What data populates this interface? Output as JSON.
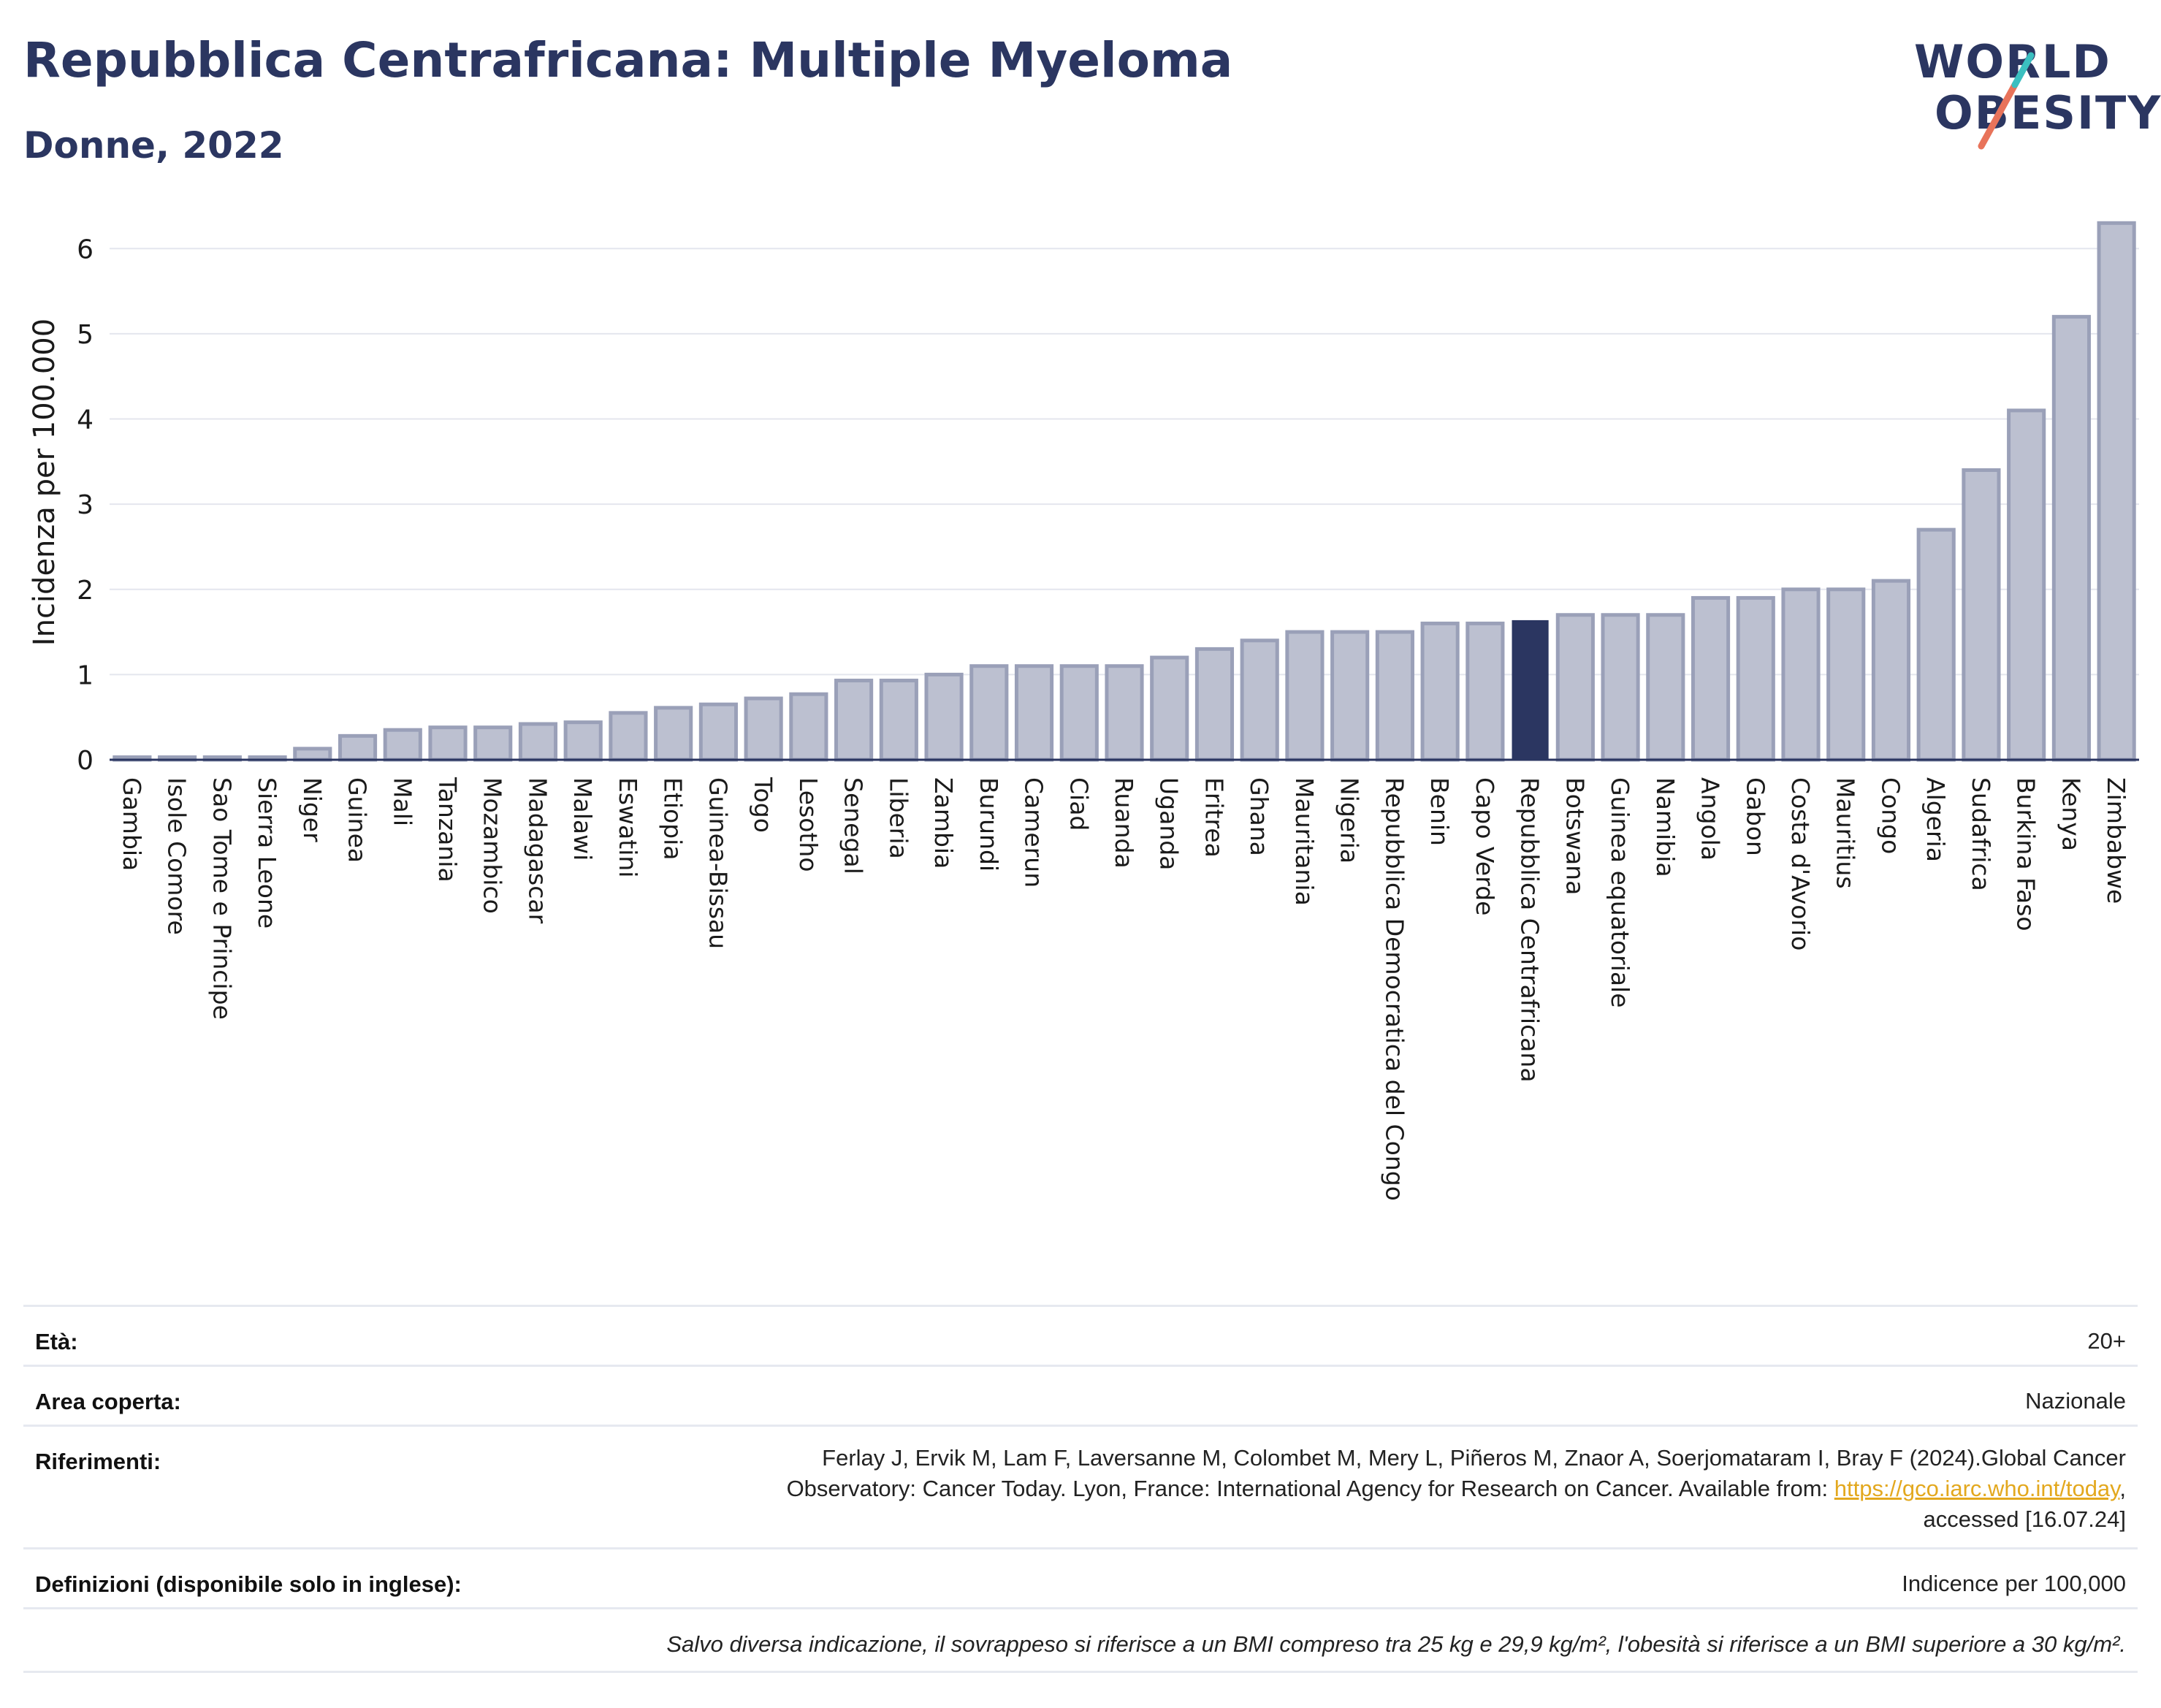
{
  "header": {
    "title": "Repubblica Centrafricana: Multiple Myeloma",
    "subtitle": "Donne, 2022"
  },
  "logo": {
    "line1": "WORLD",
    "line2": "OBESITY",
    "accent_teal": "#3bbfc0",
    "accent_coral": "#e8735a"
  },
  "colors": {
    "bar": "#bcc0d0",
    "bar_border": "#9aa0b8",
    "highlight": "#2b3661",
    "grid": "#e4e6ee"
  },
  "chart_data": {
    "type": "bar",
    "ylabel": "Incidenza per 100.000",
    "xlabel": "",
    "ylim": [
      0,
      6.5
    ],
    "yticks": [
      0,
      1,
      2,
      3,
      4,
      5,
      6
    ],
    "highlight": "Repubblica Centrafricana",
    "categories": [
      "Gambia",
      "Isole Comore",
      "Sao Tome e Principe",
      "Sierra Leone",
      "Niger",
      "Guinea",
      "Mali",
      "Tanzania",
      "Mozambico",
      "Madagascar",
      "Malawi",
      "Eswatini",
      "Etiopia",
      "Guinea-Bissau",
      "Togo",
      "Lesotho",
      "Senegal",
      "Liberia",
      "Zambia",
      "Burundi",
      "Camerun",
      "Ciad",
      "Ruanda",
      "Uganda",
      "Eritrea",
      "Ghana",
      "Mauritania",
      "Nigeria",
      "Repubblica Democratica del Congo",
      "Benin",
      "Capo Verde",
      "Repubblica Centrafricana",
      "Botswana",
      "Guinea equatoriale",
      "Namibia",
      "Angola",
      "Gabon",
      "Costa d'Avorio",
      "Mauritius",
      "Congo",
      "Algeria",
      "Sudafrica",
      "Burkina Faso",
      "Kenya",
      "Zimbabwe"
    ],
    "values": [
      0.03,
      0.03,
      0.03,
      0.03,
      0.13,
      0.28,
      0.35,
      0.38,
      0.38,
      0.42,
      0.44,
      0.55,
      0.61,
      0.65,
      0.72,
      0.77,
      0.93,
      0.93,
      1.0,
      1.1,
      1.1,
      1.1,
      1.1,
      1.2,
      1.3,
      1.4,
      1.5,
      1.5,
      1.5,
      1.6,
      1.6,
      1.63,
      1.7,
      1.7,
      1.7,
      1.9,
      1.9,
      2.0,
      2.0,
      2.1,
      2.7,
      3.4,
      4.1,
      5.2,
      6.3
    ]
  },
  "info": {
    "age_key": "Età:",
    "age_val": "20+",
    "area_key": "Area coperta:",
    "area_val": "Nazionale",
    "ref_key": "Riferimenti:",
    "ref_line1": "Ferlay J, Ervik M, Lam F, Laversanne M, Colombet M, Mery L, Piñeros M, Znaor A, Soerjomataram I, Bray F (2024).Global Cancer",
    "ref_line2_pre": "Observatory: Cancer Today. Lyon, France: International Agency for Research on Cancer. Available from: ",
    "ref_link": "https://gco.iarc.who.int/today",
    "ref_line2_post": ",",
    "ref_line3": "accessed [16.07.24]",
    "def_key": "Definizioni (disponibile solo in inglese):",
    "def_val": "Indicence per 100,000",
    "note": "Salvo diversa indicazione, il sovrappeso si riferisce a un BMI compreso tra 25 kg e 29,9 kg/m², l'obesità si riferisce a un BMI superiore a 30 kg/m²."
  }
}
